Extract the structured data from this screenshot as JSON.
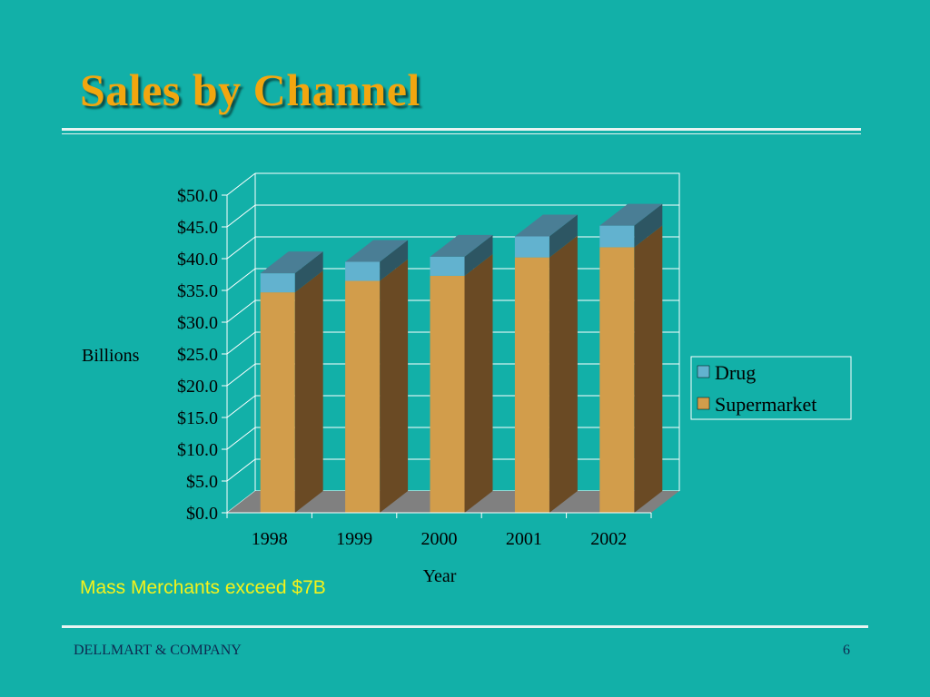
{
  "slide": {
    "title": "Sales by Channel",
    "note": "Mass Merchants exceed $7B",
    "footer_left": "DELLMART & COMPANY",
    "page_number": "6"
  },
  "colors": {
    "background": "#12b0a8",
    "title": "#f2a60f",
    "supermarket_front": "#d29d4b",
    "supermarket_side": "#6a4a24",
    "drug_front": "#62b2cf",
    "drug_side": "#2d5663",
    "drug_top": "#4a7e95",
    "floor": "#808080",
    "note": "#f4f21a"
  },
  "chart_data": {
    "type": "bar",
    "stacked": true,
    "three_d": true,
    "categories": [
      "1998",
      "1999",
      "2000",
      "2001",
      "2002"
    ],
    "series": [
      {
        "name": "Supermarket",
        "values": [
          34.7,
          36.5,
          37.3,
          40.2,
          41.8
        ]
      },
      {
        "name": "Drug",
        "values": [
          3.0,
          3.0,
          3.0,
          3.3,
          3.4
        ]
      }
    ],
    "xlabel": "Year",
    "ylabel": "Billions",
    "ylim": [
      0,
      50
    ],
    "y_ticks": [
      "$0.0",
      "$5.0",
      "$10.0",
      "$15.0",
      "$20.0",
      "$25.0",
      "$30.0",
      "$35.0",
      "$40.0",
      "$45.0",
      "$50.0"
    ],
    "grid": true,
    "legend_position": "right"
  }
}
